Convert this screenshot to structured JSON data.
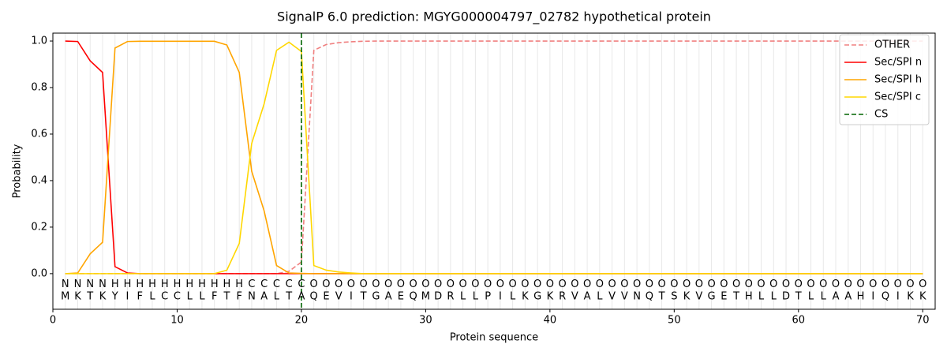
{
  "chart_data": {
    "type": "line",
    "title": "SignalP 6.0 prediction: MGYG000004797_02782 hypothetical protein",
    "xlabel": "Protein sequence",
    "ylabel": "Probability",
    "xlim": [
      0,
      71
    ],
    "ylim": [
      -0.153,
      1.034
    ],
    "xticks": [
      0,
      10,
      20,
      30,
      40,
      50,
      60,
      70
    ],
    "yticks": [
      {
        "value": 0,
        "label": "0.0"
      },
      {
        "value": 0.2,
        "label": "0.2"
      },
      {
        "value": 0.4,
        "label": "0.4"
      },
      {
        "value": 0.6,
        "label": "0.6"
      },
      {
        "value": 0.8,
        "label": "0.8"
      },
      {
        "value": 1.0,
        "label": "1.0"
      }
    ],
    "residue_grid": true,
    "legend": "upper right",
    "x": [
      1,
      2,
      3,
      4,
      5,
      6,
      7,
      8,
      9,
      10,
      11,
      12,
      13,
      14,
      15,
      16,
      17,
      18,
      19,
      20,
      21,
      22,
      23,
      24,
      25,
      26,
      27,
      28,
      29,
      30,
      31,
      32,
      33,
      34,
      35,
      36,
      37,
      38,
      39,
      40,
      41,
      42,
      43,
      44,
      45,
      46,
      47,
      48,
      49,
      50,
      51,
      52,
      53,
      54,
      55,
      56,
      57,
      58,
      59,
      60,
      61,
      62,
      63,
      64,
      65,
      66,
      67,
      68,
      69,
      70
    ],
    "series": [
      {
        "name": "OTHER",
        "color": "#f08080",
        "dash": true,
        "values": [
          0,
          0,
          0,
          0,
          0,
          0,
          0,
          0,
          0,
          0,
          0,
          0,
          0,
          0,
          0,
          0,
          0,
          0,
          0.01,
          0.05,
          0.96,
          0.985,
          0.993,
          0.997,
          0.999,
          1,
          1,
          1,
          1,
          1,
          1,
          1,
          1,
          1,
          1,
          1,
          1,
          1,
          1,
          1,
          1,
          1,
          1,
          1,
          1,
          1,
          1,
          1,
          1,
          1,
          1,
          1,
          1,
          1,
          1,
          1,
          1,
          1,
          1,
          1,
          1,
          1,
          1,
          1,
          1,
          1,
          1,
          1,
          1,
          1
        ]
      },
      {
        "name": "Sec/SPI n",
        "color": "#ff0000",
        "dash": false,
        "values": [
          1.0,
          0.998,
          0.915,
          0.865,
          0.03,
          0.003,
          0,
          0,
          0,
          0,
          0,
          0,
          0,
          0,
          0,
          0,
          0,
          0,
          0,
          0,
          0,
          0,
          0,
          0,
          0,
          0,
          0,
          0,
          0,
          0,
          0,
          0,
          0,
          0,
          0,
          0,
          0,
          0,
          0,
          0,
          0,
          0,
          0,
          0,
          0,
          0,
          0,
          0,
          0,
          0,
          0,
          0,
          0,
          0,
          0,
          0,
          0,
          0,
          0,
          0,
          0,
          0,
          0,
          0,
          0,
          0,
          0,
          0,
          0,
          0
        ]
      },
      {
        "name": "Sec/SPI h",
        "color": "#ffa500",
        "dash": false,
        "values": [
          0,
          0.003,
          0.085,
          0.135,
          0.97,
          0.998,
          0.999,
          0.999,
          0.999,
          0.999,
          0.999,
          0.999,
          0.999,
          0.983,
          0.865,
          0.44,
          0.27,
          0.035,
          0.003,
          0.001,
          0,
          0,
          0,
          0,
          0,
          0,
          0,
          0,
          0,
          0,
          0,
          0,
          0,
          0,
          0,
          0,
          0,
          0,
          0,
          0,
          0,
          0,
          0,
          0,
          0,
          0,
          0,
          0,
          0,
          0,
          0,
          0,
          0,
          0,
          0,
          0,
          0,
          0,
          0,
          0,
          0,
          0,
          0,
          0,
          0,
          0,
          0,
          0,
          0,
          0
        ]
      },
      {
        "name": "Sec/SPI c",
        "color": "#ffd700",
        "dash": false,
        "values": [
          0,
          0,
          0,
          0,
          0,
          0,
          0,
          0,
          0,
          0,
          0,
          0,
          0,
          0.015,
          0.13,
          0.56,
          0.73,
          0.96,
          0.995,
          0.955,
          0.035,
          0.015,
          0.007,
          0.003,
          0,
          0,
          0,
          0,
          0,
          0,
          0,
          0,
          0,
          0,
          0,
          0,
          0,
          0,
          0,
          0,
          0,
          0,
          0,
          0,
          0,
          0,
          0,
          0,
          0,
          0,
          0,
          0,
          0,
          0,
          0,
          0,
          0,
          0,
          0,
          0,
          0,
          0,
          0,
          0,
          0,
          0,
          0,
          0,
          0,
          0
        ]
      }
    ],
    "cs": {
      "name": "CS",
      "x": 20,
      "color": "#006400"
    },
    "sequence": [
      "M",
      "K",
      "T",
      "K",
      "Y",
      "I",
      "F",
      "L",
      "C",
      "C",
      "L",
      "L",
      "F",
      "T",
      "F",
      "N",
      "A",
      "L",
      "T",
      "A",
      "Q",
      "E",
      "V",
      "I",
      "T",
      "G",
      "A",
      "E",
      "Q",
      "M",
      "D",
      "R",
      "L",
      "L",
      "P",
      "I",
      "L",
      "K",
      "G",
      "K",
      "R",
      "V",
      "A",
      "L",
      "V",
      "V",
      "N",
      "Q",
      "T",
      "S",
      "K",
      "V",
      "G",
      "E",
      "T",
      "H",
      "L",
      "L",
      "D",
      "T",
      "L",
      "L",
      "A",
      "A",
      "H",
      "I",
      "Q",
      "I",
      "K",
      "K"
    ],
    "labels": [
      "N",
      "N",
      "N",
      "N",
      "H",
      "H",
      "H",
      "H",
      "H",
      "H",
      "H",
      "H",
      "H",
      "H",
      "H",
      "C",
      "C",
      "C",
      "C",
      "C",
      "O",
      "O",
      "O",
      "O",
      "O",
      "O",
      "O",
      "O",
      "O",
      "O",
      "O",
      "O",
      "O",
      "O",
      "O",
      "O",
      "O",
      "O",
      "O",
      "O",
      "O",
      "O",
      "O",
      "O",
      "O",
      "O",
      "O",
      "O",
      "O",
      "O",
      "O",
      "O",
      "O",
      "O",
      "O",
      "O",
      "O",
      "O",
      "O",
      "O",
      "O",
      "O",
      "O",
      "O",
      "O",
      "O",
      "O",
      "O",
      "O",
      "O"
    ],
    "label_colors": {
      "N": "#ff0000",
      "H": "#ffa500",
      "C": "#ffd700",
      "O": "#808080"
    }
  }
}
